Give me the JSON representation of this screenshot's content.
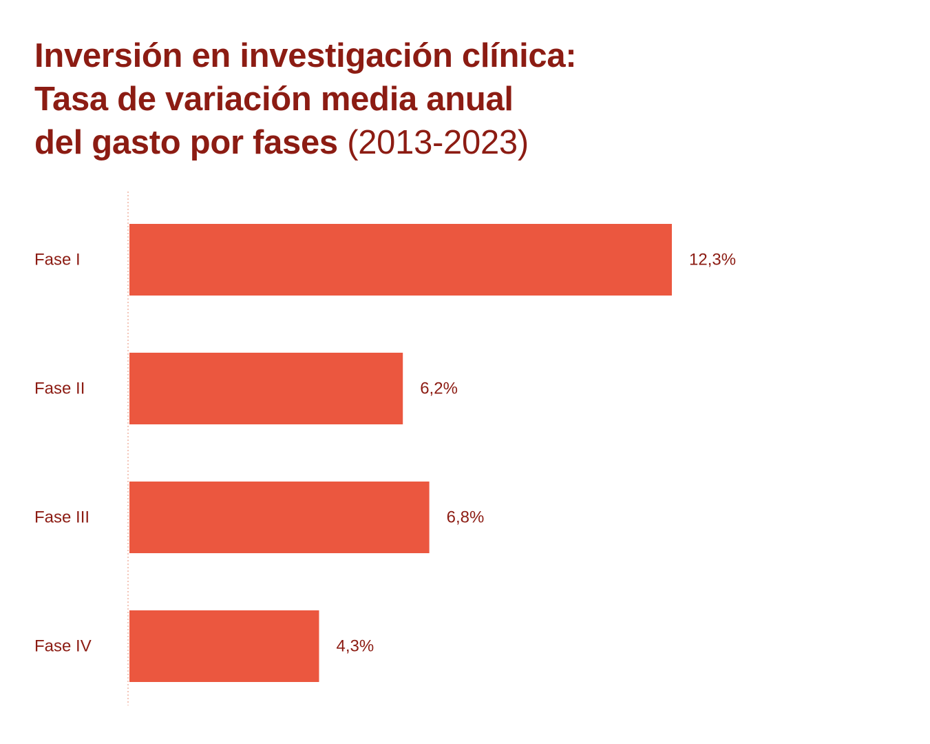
{
  "title": {
    "line1": "Inversión en investigación clínica:",
    "line2": "Tasa de variación media anual",
    "line3_bold": "del gasto por fases",
    "line3_light": "(2013-2023)"
  },
  "colors": {
    "bar": "#eb573f",
    "text": "#8c1c13",
    "axis": "#f4c5b8"
  },
  "chart_data": {
    "type": "bar",
    "orientation": "horizontal",
    "categories": [
      "Fase I",
      "Fase II",
      "Fase III",
      "Fase IV"
    ],
    "values": [
      12.3,
      6.2,
      6.8,
      4.3
    ],
    "value_labels": [
      "12,3%",
      "6,2%",
      "6,8%",
      "4,3%"
    ],
    "xlim": [
      0,
      12.3
    ],
    "grid": false,
    "legend": "none"
  }
}
